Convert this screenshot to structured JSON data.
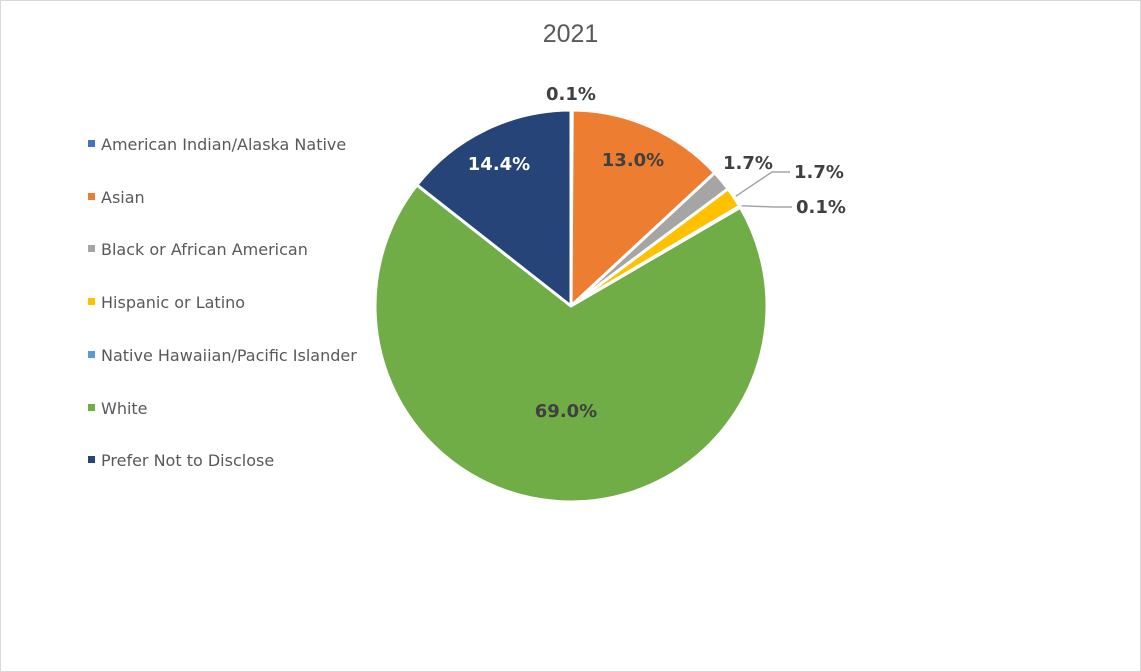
{
  "chart_data": {
    "type": "pie",
    "title": "2021",
    "legend_position": "left",
    "categories": [
      "American Indian/Alaska Native",
      "Asian",
      "Black or African American",
      "Hispanic or Latino",
      "Native Hawaiian/Pacific Islander",
      "White",
      "Prefer Not to Disclose"
    ],
    "values": [
      0.1,
      13.0,
      1.7,
      1.7,
      0.1,
      69.0,
      14.4
    ],
    "data_labels": [
      "0.1%",
      "13.0%",
      "1.7%",
      "1.7%",
      "0.1%",
      "69.0%",
      "14.4%"
    ],
    "colors": [
      "#4472C4",
      "#ED7D31",
      "#A5A5A5",
      "#FFC000",
      "#5B9BD5",
      "#70AD47",
      "#264478"
    ],
    "label_colors": [
      "#404040",
      "#404040",
      "#404040",
      "#404040",
      "#404040",
      "#404040",
      "#ffffff"
    ]
  }
}
